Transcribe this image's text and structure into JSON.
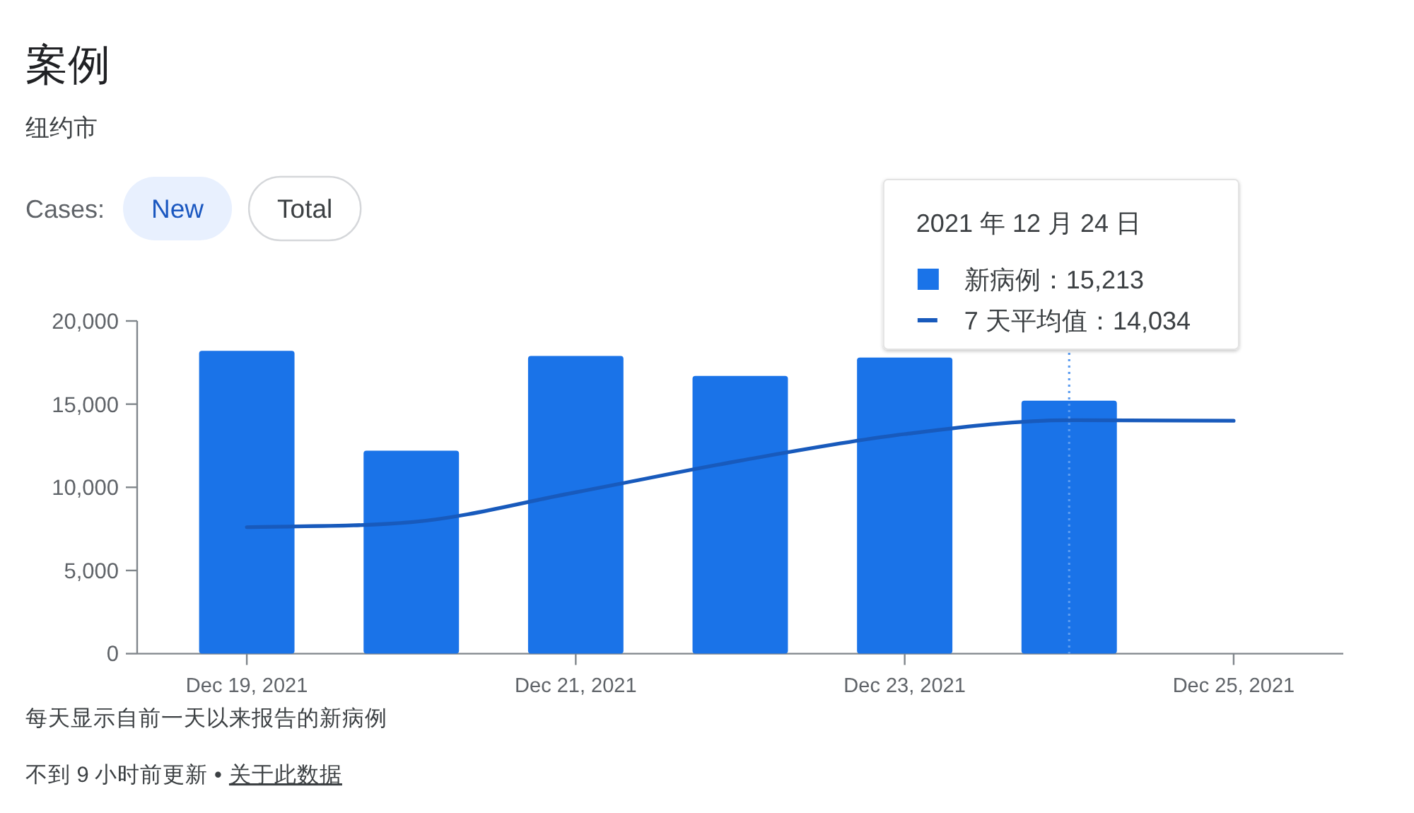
{
  "chart_data": {
    "type": "bar",
    "title": "案例",
    "subtitle": "纽约市",
    "x": [
      "2021-12-19",
      "2021-12-20",
      "2021-12-21",
      "2021-12-22",
      "2021-12-23",
      "2021-12-24",
      "2021-12-25"
    ],
    "series": [
      {
        "name": "新病例：",
        "color": "#1a73e8",
        "values": [
          18200,
          12200,
          17900,
          16700,
          17800,
          15213,
          null
        ]
      },
      {
        "name": "7 天平均值：",
        "type": "line",
        "color": "#185abc",
        "values": [
          7600,
          7900,
          9700,
          11600,
          13200,
          14034,
          14000
        ]
      }
    ],
    "xlim": [
      "2021-12-18T08:00",
      "2021-12-25T16:00"
    ],
    "xticks": [
      {
        "value": "2021-12-19",
        "label": "Dec 19, 2021"
      },
      {
        "value": "2021-12-21",
        "label": "Dec 21, 2021"
      },
      {
        "value": "2021-12-23",
        "label": "Dec 23, 2021"
      },
      {
        "value": "2021-12-25",
        "label": "Dec 25, 2021"
      }
    ],
    "ylim": [
      0,
      20000
    ],
    "yticks": [
      0,
      {
        "value": 5000,
        "label": "5,000"
      },
      {
        "value": 10000,
        "label": "10,000"
      },
      {
        "value": 15000,
        "label": "15,000"
      },
      {
        "value": 20000,
        "label": "20,000"
      }
    ],
    "ref_lines": [
      {
        "axis": "x",
        "value": "2021-12-24",
        "color": "#5b9cf0",
        "line_style": "dotted"
      }
    ],
    "legend": "top right",
    "legend_title": "2021 年 12 月 24 日",
    "annotations": [
      "Cases:",
      "New",
      "Total",
      "每天显示自前一天以来报告的新病例",
      "不到 9 小时前更新 •",
      "关于此数据",
      "15,213",
      "14,034"
    ]
  }
}
